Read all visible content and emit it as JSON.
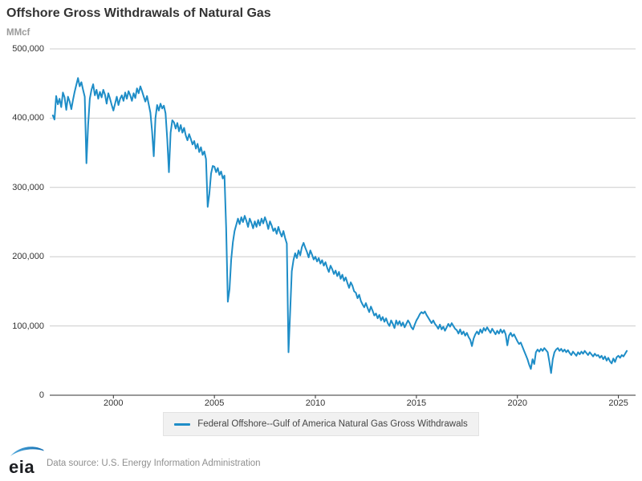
{
  "header": {
    "title": "Offshore Gross Withdrawals of Natural Gas",
    "unit": "MMcf"
  },
  "colors": {
    "line": "#1e8dc7",
    "grid": "#cccccc",
    "axis": "#333333",
    "title_text": "#333333",
    "muted_text": "#9a9a9a",
    "legend_bg": "#f1f1f1",
    "legend_border": "#e2e2e2",
    "logo_swoosh_start": "#54abdd",
    "logo_swoosh_end": "#0f6cb0"
  },
  "legend": {
    "label": "Federal Offshore--Gulf of America Natural Gas Gross Withdrawals"
  },
  "footer": {
    "logo_text": "eia",
    "source": "Data source: U.S. Energy Information Administration"
  },
  "chart_data": {
    "type": "line",
    "title": "Offshore Gross Withdrawals of Natural Gas",
    "xlabel": "",
    "ylabel": "MMcf",
    "grid": "horizontal",
    "legend_position": "bottom",
    "x_start_year": 1997,
    "x_interval": "monthly",
    "xlim": [
      1996.85,
      2025.85
    ],
    "ylim": [
      0,
      500000
    ],
    "ytick_step": 100000,
    "xticks": [
      2000,
      2005,
      2010,
      2015,
      2020,
      2025
    ],
    "series": [
      {
        "name": "Federal Offshore--Gulf of America Natural Gas Gross Withdrawals",
        "color": "#1e8dc7",
        "values": [
          404000,
          398000,
          432000,
          420000,
          428000,
          416000,
          437000,
          430000,
          412000,
          431000,
          424000,
          413000,
          426000,
          438000,
          448000,
          458000,
          446000,
          452000,
          441000,
          431000,
          335000,
          390000,
          428000,
          441000,
          449000,
          433000,
          441000,
          428000,
          438000,
          430000,
          441000,
          434000,
          421000,
          436000,
          428000,
          419000,
          411000,
          421000,
          431000,
          419000,
          428000,
          433000,
          425000,
          437000,
          428000,
          439000,
          433000,
          425000,
          436000,
          429000,
          443000,
          436000,
          446000,
          439000,
          431000,
          424000,
          432000,
          420000,
          408000,
          381000,
          345000,
          400000,
          419000,
          411000,
          421000,
          414000,
          418000,
          407000,
          370000,
          322000,
          379000,
          397000,
          394000,
          385000,
          393000,
          381000,
          390000,
          379000,
          386000,
          375000,
          368000,
          377000,
          370000,
          362000,
          367000,
          356000,
          363000,
          351000,
          358000,
          347000,
          352000,
          341000,
          272000,
          291000,
          320000,
          331000,
          330000,
          322000,
          328000,
          318000,
          323000,
          313000,
          317000,
          242000,
          135000,
          153000,
          196000,
          221000,
          237000,
          246000,
          255000,
          247000,
          257000,
          250000,
          259000,
          252000,
          243000,
          255000,
          249000,
          241000,
          251000,
          243000,
          253000,
          245000,
          255000,
          248000,
          257000,
          250000,
          240000,
          251000,
          245000,
          237000,
          241000,
          233000,
          243000,
          235000,
          229000,
          237000,
          227000,
          219000,
          62000,
          121000,
          179000,
          195000,
          205000,
          198000,
          209000,
          202000,
          214000,
          220000,
          213000,
          207000,
          199000,
          209000,
          203000,
          196000,
          200000,
          193000,
          198000,
          190000,
          195000,
          187000,
          192000,
          184000,
          178000,
          187000,
          182000,
          175000,
          180000,
          172000,
          178000,
          168000,
          174000,
          165000,
          170000,
          162000,
          155000,
          163000,
          158000,
          150000,
          148000,
          140000,
          145000,
          136000,
          131000,
          127000,
          133000,
          126000,
          120000,
          128000,
          122000,
          115000,
          118000,
          111000,
          116000,
          108000,
          113000,
          106000,
          111000,
          104000,
          100000,
          108000,
          103000,
          97000,
          108000,
          102000,
          107000,
          100000,
          105000,
          98000,
          103000,
          108000,
          104000,
          98000,
          95000,
          102000,
          108000,
          112000,
          117000,
          120000,
          118000,
          121000,
          116000,
          112000,
          108000,
          104000,
          108000,
          103000,
          100000,
          96000,
          102000,
          95000,
          99000,
          93000,
          98000,
          103000,
          99000,
          104000,
          100000,
          96000,
          94000,
          89000,
          95000,
          88000,
          92000,
          86000,
          90000,
          84000,
          80000,
          71000,
          82000,
          88000,
          92000,
          88000,
          95000,
          90000,
          97000,
          93000,
          98000,
          94000,
          90000,
          96000,
          92000,
          88000,
          93000,
          89000,
          95000,
          90000,
          94000,
          88000,
          72000,
          86000,
          90000,
          85000,
          88000,
          83000,
          78000,
          74000,
          76000,
          70000,
          64000,
          58000,
          52000,
          44000,
          38000,
          52000,
          45000,
          62000,
          66000,
          63000,
          67000,
          64000,
          68000,
          65000,
          62000,
          48000,
          32000,
          52000,
          62000,
          66000,
          68000,
          64000,
          67000,
          63000,
          66000,
          62000,
          65000,
          61000,
          58000,
          63000,
          60000,
          57000,
          62000,
          59000,
          63000,
          60000,
          64000,
          61000,
          58000,
          62000,
          59000,
          56000,
          60000,
          57000,
          58000,
          54000,
          57000,
          52000,
          56000,
          50000,
          54000,
          49000,
          46000,
          53000,
          48000,
          55000,
          57000,
          54000,
          58000,
          56000,
          60000,
          64000
        ]
      }
    ]
  }
}
